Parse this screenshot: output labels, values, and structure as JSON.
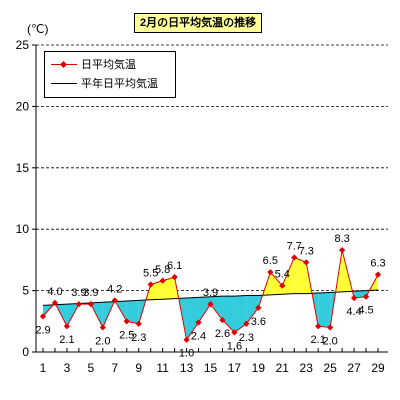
{
  "title": "2月の日平均気温の推移",
  "unit": "(℃)",
  "legend": {
    "daily": "日平均気温",
    "normal": "平年日平均気温"
  },
  "colors": {
    "daily_line": "#e00000",
    "normal_line": "#000000",
    "above_fill": "#ffff33",
    "below_fill": "#33ccdd",
    "grid": "#000000"
  },
  "chart_data": {
    "type": "line",
    "x": [
      1,
      2,
      3,
      4,
      5,
      6,
      7,
      8,
      9,
      10,
      11,
      12,
      13,
      14,
      15,
      16,
      17,
      18,
      19,
      20,
      21,
      22,
      23,
      24,
      25,
      26,
      27,
      28,
      29
    ],
    "x_ticks": [
      1,
      3,
      5,
      7,
      9,
      11,
      13,
      15,
      17,
      19,
      21,
      23,
      25,
      27,
      29
    ],
    "ylim": [
      0,
      25
    ],
    "y_ticks": [
      0,
      5,
      10,
      15,
      20,
      25
    ],
    "grid": "horizontal dashed",
    "legend_position": "top-left",
    "series": [
      {
        "name": "日平均気温",
        "values": [
          2.9,
          4.0,
          2.1,
          3.9,
          3.9,
          2.0,
          4.2,
          2.5,
          2.3,
          5.5,
          5.8,
          6.1,
          1.0,
          2.4,
          3.9,
          2.6,
          1.6,
          2.3,
          3.6,
          6.5,
          5.4,
          7.7,
          7.3,
          2.1,
          2.0,
          8.3,
          4.4,
          4.5,
          6.3
        ],
        "labels": [
          "2.9",
          "4.0",
          "2.1",
          "3.9",
          "3.9",
          "2.0",
          "4.2",
          "2.5",
          "2.3",
          "5.5",
          "5.8",
          "6.1",
          "1.0",
          "2.4",
          "3.9",
          "2.6",
          "1.6",
          "2.3",
          "3.6",
          "6.5",
          "5.4",
          "7.7",
          "7.3",
          "2.1",
          "2.0",
          "8.3",
          "4.4",
          "4.5",
          "6.3"
        ],
        "label_pos": [
          "below",
          "above",
          "below",
          "above",
          "above",
          "below",
          "above",
          "below",
          "below",
          "above",
          "above",
          "above",
          "below",
          "below",
          "above",
          "below",
          "below",
          "below",
          "below",
          "above",
          "above",
          "above",
          "above",
          "below",
          "below",
          "above",
          "below",
          "below",
          "above"
        ]
      },
      {
        "name": "平年日平均気温",
        "values": [
          3.8,
          3.85,
          3.9,
          3.95,
          4.0,
          4.05,
          4.1,
          4.15,
          4.2,
          4.25,
          4.3,
          4.35,
          4.4,
          4.45,
          4.5,
          4.55,
          4.55,
          4.6,
          4.6,
          4.65,
          4.7,
          4.75,
          4.75,
          4.8,
          4.85,
          4.9,
          4.95,
          5.0,
          5.05
        ]
      }
    ]
  }
}
